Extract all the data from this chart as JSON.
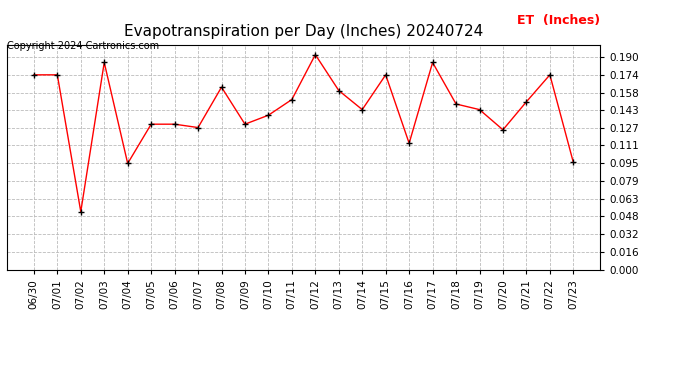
{
  "title": "Evapotranspiration per Day (Inches) 20240724",
  "copyright_text": "Copyright 2024 Cartronics.com",
  "legend_text": "ET  (Inches)",
  "dates": [
    "06/30",
    "07/01",
    "07/02",
    "07/03",
    "07/04",
    "07/05",
    "07/06",
    "07/07",
    "07/08",
    "07/09",
    "07/10",
    "07/11",
    "07/12",
    "07/13",
    "07/14",
    "07/15",
    "07/16",
    "07/17",
    "07/18",
    "07/19",
    "07/20",
    "07/21",
    "07/22",
    "07/23"
  ],
  "values": [
    0.174,
    0.174,
    0.052,
    0.185,
    0.095,
    0.13,
    0.13,
    0.127,
    0.163,
    0.13,
    0.138,
    0.152,
    0.192,
    0.16,
    0.143,
    0.174,
    0.113,
    0.185,
    0.148,
    0.143,
    0.125,
    0.15,
    0.174,
    0.096
  ],
  "line_color": "#ff0000",
  "marker_color": "#000000",
  "background_color": "#ffffff",
  "grid_color": "#bbbbbb",
  "ylim": [
    0.0,
    0.2006
  ],
  "yticks": [
    0.0,
    0.016,
    0.032,
    0.048,
    0.063,
    0.079,
    0.095,
    0.111,
    0.127,
    0.143,
    0.158,
    0.174,
    0.19
  ],
  "title_fontsize": 11,
  "copyright_fontsize": 7,
  "legend_fontsize": 9,
  "tick_fontsize": 7.5
}
